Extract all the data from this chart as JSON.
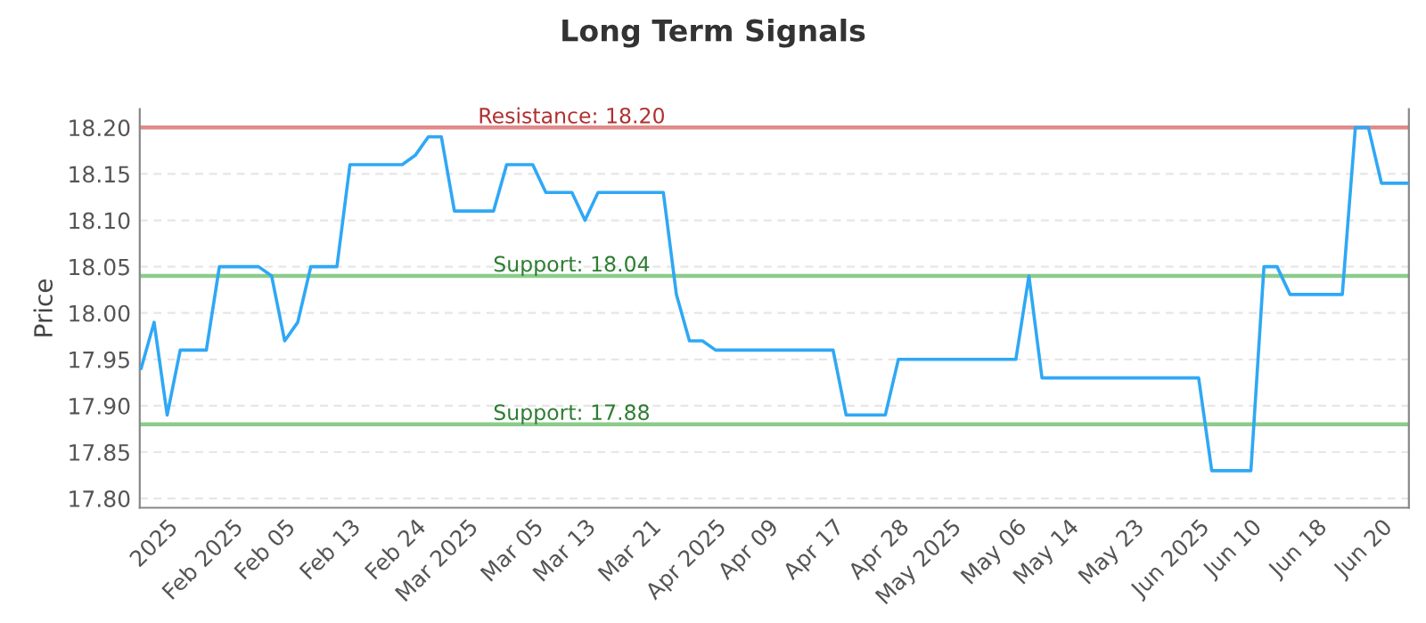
{
  "chart_data": {
    "type": "line",
    "title": "Long Term Signals",
    "ylabel": "Price",
    "categories": [
      null,
      null,
      "2025",
      null,
      null,
      null,
      null,
      "Feb 2025",
      null,
      null,
      null,
      "Feb 05",
      null,
      null,
      null,
      null,
      "Feb 13",
      null,
      null,
      null,
      null,
      "Feb 24",
      null,
      null,
      null,
      "Mar 2025",
      null,
      null,
      null,
      null,
      "Mar 05",
      null,
      null,
      null,
      "Mar 13",
      null,
      null,
      null,
      null,
      "Mar 21",
      null,
      null,
      null,
      null,
      "Apr 2025",
      null,
      null,
      null,
      "Apr 09",
      null,
      null,
      null,
      null,
      "Apr 17",
      null,
      null,
      null,
      null,
      "Apr 28",
      null,
      null,
      null,
      "May 2025",
      null,
      null,
      null,
      null,
      "May 06",
      null,
      null,
      null,
      "May 14",
      null,
      null,
      null,
      null,
      "May 23",
      null,
      null,
      null,
      null,
      "Jun 2025",
      null,
      null,
      null,
      "Jun 10",
      null,
      null,
      null,
      null,
      "Jun 18",
      null,
      null,
      null,
      null,
      "Jun 20",
      null,
      null
    ],
    "series": [
      {
        "color": "#2fa8f5",
        "values": [
          17.94,
          17.99,
          17.89,
          17.96,
          17.96,
          17.96,
          18.05,
          18.05,
          18.05,
          18.05,
          18.04,
          17.97,
          17.99,
          18.05,
          18.05,
          18.05,
          18.16,
          18.16,
          18.16,
          18.16,
          18.16,
          18.17,
          18.19,
          18.19,
          18.11,
          18.11,
          18.11,
          18.11,
          18.16,
          18.16,
          18.16,
          18.13,
          18.13,
          18.13,
          18.1,
          18.13,
          18.13,
          18.13,
          18.13,
          18.13,
          18.13,
          18.02,
          17.97,
          17.97,
          17.96,
          17.96,
          17.96,
          17.96,
          17.96,
          17.96,
          17.96,
          17.96,
          17.96,
          17.96,
          17.89,
          17.89,
          17.89,
          17.89,
          17.95,
          17.95,
          17.95,
          17.95,
          17.95,
          17.95,
          17.95,
          17.95,
          17.95,
          17.95,
          18.04,
          17.93,
          17.93,
          17.93,
          17.93,
          17.93,
          17.93,
          17.93,
          17.93,
          17.93,
          17.93,
          17.93,
          17.93,
          17.93,
          17.83,
          17.83,
          17.83,
          17.83,
          18.05,
          18.05,
          18.02,
          18.02,
          18.02,
          18.02,
          18.02,
          18.2,
          18.2,
          18.14,
          18.14,
          18.14
        ]
      }
    ],
    "ylim": [
      17.79,
      18.22
    ],
    "yticks": [
      {
        "value": 17.8,
        "label": "17.80"
      },
      {
        "value": 17.85,
        "label": "17.85"
      },
      {
        "value": 17.9,
        "label": "17.90"
      },
      {
        "value": 17.95,
        "label": "17.95"
      },
      {
        "value": 18.0,
        "label": "18.00"
      },
      {
        "value": 18.05,
        "label": "18.05"
      },
      {
        "value": 18.1,
        "label": "18.10"
      },
      {
        "value": 18.15,
        "label": "18.15"
      },
      {
        "value": 18.2,
        "label": "18.20"
      }
    ],
    "grid": "y",
    "marker": "none",
    "line_style": "solid",
    "ref_lines": [
      {
        "axis": "y",
        "value": 18.2,
        "label": "Resistance: 18.20",
        "color": "#e08a8a"
      },
      {
        "axis": "y",
        "value": 18.04,
        "label": "Support: 18.04",
        "color": "#8ccb8c"
      },
      {
        "axis": "y",
        "value": 17.88,
        "label": "Support: 17.88",
        "color": "#8ccb8c"
      }
    ]
  }
}
